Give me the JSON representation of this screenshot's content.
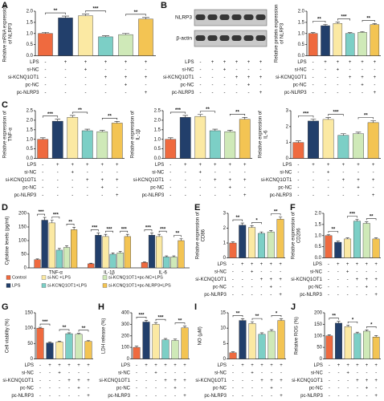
{
  "conditions": [
    {
      "name": "LPS",
      "signs": [
        "-",
        "+",
        "+",
        "+",
        "+",
        "+"
      ]
    },
    {
      "name": "si-NC",
      "signs": [
        "-",
        "-",
        "+",
        "-",
        "-",
        "-"
      ]
    },
    {
      "name": "si-KCNQ1OT1",
      "signs": [
        "-",
        "-",
        "-",
        "+",
        "+",
        "+"
      ]
    },
    {
      "name": "pc-NC",
      "signs": [
        "-",
        "-",
        "-",
        "-",
        "+",
        "-"
      ]
    },
    {
      "name": "pc-NLRP3",
      "signs": [
        "-",
        "-",
        "-",
        "-",
        "-",
        "+"
      ]
    }
  ],
  "blot": {
    "panel": "B",
    "bands": [
      "NLRP3",
      "β-actin"
    ]
  },
  "chart_data": [
    {
      "type": "bar",
      "panel": "A",
      "ylabel": [
        "Relative mRNA expression",
        "of NLRP3"
      ],
      "colors": [
        "#ef6a3f",
        "#223f6b",
        "#fbe9a3",
        "#7ccfc6",
        "#cfe9b8",
        "#f3c453"
      ],
      "values": [
        1.0,
        1.7,
        1.8,
        0.85,
        0.95,
        1.65
      ],
      "errors": [
        0.05,
        0.08,
        0.07,
        0.05,
        0.05,
        0.07
      ],
      "ylim": [
        0,
        2
      ],
      "yticks": [
        {
          "value": 0,
          "label": "0.0"
        },
        0.5,
        {
          "value": 1,
          "label": "1.0"
        },
        1.5,
        {
          "value": 2,
          "label": "2.0"
        }
      ],
      "comparisons": [
        {
          "pair": [
            0,
            1
          ],
          "label": "**"
        },
        {
          "pair": [
            2,
            3
          ],
          "label": "***"
        },
        {
          "pair": [
            4,
            5
          ],
          "label": "**"
        }
      ]
    },
    {
      "type": "bar",
      "ylabel": [
        "Relative protein expression",
        "of NLRP3"
      ],
      "colors": [
        "#ef6a3f",
        "#223f6b",
        "#fbe9a3",
        "#7ccfc6",
        "#cfe9b8",
        "#f3c453"
      ],
      "values": [
        1.0,
        1.35,
        1.45,
        1.0,
        1.05,
        1.4
      ],
      "errors": [
        0.04,
        0.06,
        0.06,
        0.04,
        0.04,
        0.05
      ],
      "ylim": [
        0,
        2
      ],
      "yticks": [
        {
          "value": 0,
          "label": "0.0"
        },
        0.5,
        {
          "value": 1,
          "label": "1.0"
        },
        1.5,
        {
          "value": 2,
          "label": "2.0"
        }
      ],
      "comparisons": [
        {
          "pair": [
            0,
            1
          ],
          "label": "**"
        },
        {
          "pair": [
            2,
            3
          ],
          "label": "***"
        },
        {
          "pair": [
            4,
            5
          ],
          "label": "**"
        }
      ]
    },
    {
      "type": "bar",
      "panel": "C",
      "ylabel": [
        "Relative expression of",
        "TNF-α"
      ],
      "colors": [
        "#ef6a3f",
        "#223f6b",
        "#fbe9a3",
        "#7ccfc6",
        "#cfe9b8",
        "#f3c453"
      ],
      "values": [
        1.0,
        1.95,
        2.15,
        1.45,
        1.4,
        1.85
      ],
      "errors": [
        0.08,
        0.1,
        0.1,
        0.08,
        0.07,
        0.09
      ],
      "ylim": [
        0,
        2.5
      ],
      "yticks": [
        {
          "value": 0,
          "label": "0.0"
        },
        0.5,
        {
          "value": 1,
          "label": "1.0"
        },
        1.5,
        {
          "value": 2,
          "label": "2.0"
        },
        2.5
      ],
      "comparisons": [
        {
          "pair": [
            0,
            1
          ],
          "label": "***"
        },
        {
          "pair": [
            2,
            3
          ],
          "label": "**"
        },
        {
          "pair": [
            4,
            5
          ],
          "label": "**"
        }
      ]
    },
    {
      "type": "bar",
      "ylabel": [
        "Relative expression of",
        "IL-1β"
      ],
      "colors": [
        "#ef6a3f",
        "#223f6b",
        "#fbe9a3",
        "#7ccfc6",
        "#cfe9b8",
        "#f3c453"
      ],
      "values": [
        1.0,
        2.15,
        2.2,
        1.45,
        1.4,
        2.05
      ],
      "errors": [
        0.08,
        0.1,
        0.1,
        0.08,
        0.08,
        0.1
      ],
      "ylim": [
        0,
        2.5
      ],
      "yticks": [
        {
          "value": 0,
          "label": "0.0"
        },
        0.5,
        {
          "value": 1,
          "label": "1.0"
        },
        1.5,
        {
          "value": 2,
          "label": "2.0"
        },
        2.5
      ],
      "comparisons": [
        {
          "pair": [
            0,
            1
          ],
          "label": "***"
        },
        {
          "pair": [
            2,
            3
          ],
          "label": "**"
        },
        {
          "pair": [
            4,
            5
          ],
          "label": "**"
        }
      ]
    },
    {
      "type": "bar",
      "ylabel": [
        "Relative expression of",
        "IL-6"
      ],
      "colors": [
        "#ef6a3f",
        "#223f6b",
        "#fbe9a3",
        "#7ccfc6",
        "#cfe9b8",
        "#f3c453"
      ],
      "values": [
        1.0,
        2.35,
        2.45,
        1.45,
        1.55,
        2.25
      ],
      "errors": [
        0.1,
        0.12,
        0.12,
        0.1,
        0.1,
        0.12
      ],
      "ylim": [
        0,
        3
      ],
      "yticks": [
        0,
        1,
        2,
        3
      ],
      "comparisons": [
        {
          "pair": [
            0,
            1
          ],
          "label": "***"
        },
        {
          "pair": [
            2,
            3
          ],
          "label": "***"
        },
        {
          "pair": [
            4,
            5
          ],
          "label": "**"
        }
      ]
    },
    {
      "type": "grouped_bar",
      "panel": "D",
      "ylabel": [
        "Cytokine levels (pg/ml)"
      ],
      "categories": [
        "TNF-α",
        "IL-1β",
        "IL-6"
      ],
      "ylim": [
        0,
        200
      ],
      "yticks": [
        0,
        50,
        100,
        150,
        200
      ],
      "series": [
        {
          "name": "Control",
          "color": "#ef6a3f",
          "values": [
            30,
            15,
            20
          ],
          "errors": [
            3,
            2,
            2
          ]
        },
        {
          "name": "LPS",
          "color": "#223f6b",
          "values": [
            175,
            120,
            120
          ],
          "errors": [
            10,
            8,
            8
          ]
        },
        {
          "name": "si-NC +LPS",
          "color": "#fbe9a3",
          "values": [
            165,
            115,
            115
          ],
          "errors": [
            10,
            8,
            8
          ]
        },
        {
          "name": "si-KCNQ1OT1+LPS",
          "color": "#7ccfc6",
          "values": [
            65,
            50,
            40
          ],
          "errors": [
            6,
            5,
            4
          ]
        },
        {
          "name": "si-KCNQ1OT1+pc-NC+LPS",
          "color": "#cfe9b8",
          "values": [
            75,
            55,
            40
          ],
          "errors": [
            6,
            5,
            4
          ]
        },
        {
          "name": "si-KCNQ1OT1+pc-NLRP3+LPS",
          "color": "#f3c453",
          "values": [
            140,
            115,
            100
          ],
          "errors": [
            9,
            8,
            7
          ]
        }
      ],
      "comparisons": [
        {
          "category": 0,
          "pair": [
            0,
            1
          ],
          "label": "***"
        },
        {
          "category": 0,
          "pair": [
            2,
            3
          ],
          "label": "***"
        },
        {
          "category": 0,
          "pair": [
            4,
            5
          ],
          "label": "**"
        },
        {
          "category": 1,
          "pair": [
            0,
            1
          ],
          "label": "***"
        },
        {
          "category": 1,
          "pair": [
            2,
            3
          ],
          "label": "***"
        },
        {
          "category": 1,
          "pair": [
            4,
            5
          ],
          "label": "***"
        },
        {
          "category": 2,
          "pair": [
            0,
            1
          ],
          "label": "***"
        },
        {
          "category": 2,
          "pair": [
            2,
            3
          ],
          "label": "***"
        },
        {
          "category": 2,
          "pair": [
            4,
            5
          ],
          "label": "**"
        }
      ]
    },
    {
      "type": "bar",
      "panel": "E",
      "ylabel": [
        "Relative expression of",
        "CD86"
      ],
      "colors": [
        "#ef6a3f",
        "#223f6b",
        "#fbe9a3",
        "#7ccfc6",
        "#cfe9b8",
        "#f3c453"
      ],
      "values": [
        1.0,
        2.2,
        2.05,
        1.65,
        1.75,
        2.6
      ],
      "errors": [
        0.08,
        0.15,
        0.12,
        0.1,
        0.1,
        0.15
      ],
      "ylim": [
        0,
        3
      ],
      "yticks": [
        0,
        1,
        2,
        3
      ],
      "comparisons": [
        {
          "pair": [
            0,
            1
          ],
          "label": "**"
        },
        {
          "pair": [
            2,
            3
          ],
          "label": "*"
        },
        {
          "pair": [
            4,
            5
          ],
          "label": "**"
        }
      ]
    },
    {
      "type": "bar",
      "panel": "F",
      "ylabel": [
        "Relative expression of",
        "CD206"
      ],
      "colors": [
        "#ef6a3f",
        "#223f6b",
        "#fbe9a3",
        "#7ccfc6",
        "#cfe9b8",
        "#f3c453"
      ],
      "values": [
        1.0,
        0.7,
        0.85,
        1.65,
        1.55,
        0.85
      ],
      "errors": [
        0.05,
        0.05,
        0.05,
        0.08,
        0.07,
        0.05
      ],
      "ylim": [
        0,
        2
      ],
      "yticks": [
        {
          "value": 0,
          "label": "0.0"
        },
        0.5,
        {
          "value": 1,
          "label": "1.0"
        },
        1.5,
        {
          "value": 2,
          "label": "2.0"
        }
      ],
      "comparisons": [
        {
          "pair": [
            0,
            1
          ],
          "label": "**"
        },
        {
          "pair": [
            2,
            3
          ],
          "label": "***"
        },
        {
          "pair": [
            4,
            5
          ],
          "label": "**"
        }
      ]
    },
    {
      "type": "bar",
      "panel": "G",
      "ylabel": [
        "Cell viability (%)"
      ],
      "colors": [
        "#ef6a3f",
        "#223f6b",
        "#fbe9a3",
        "#7ccfc6",
        "#cfe9b8",
        "#f3c453"
      ],
      "values": [
        100,
        52,
        55,
        82,
        80,
        57
      ],
      "errors": [
        3,
        3,
        3,
        3,
        3,
        3
      ],
      "ylim": [
        0,
        150
      ],
      "yticks": [
        0,
        50,
        100,
        150
      ],
      "comparisons": [
        {
          "pair": [
            0,
            1
          ],
          "label": "***"
        },
        {
          "pair": [
            2,
            3
          ],
          "label": "**"
        },
        {
          "pair": [
            4,
            5
          ],
          "label": "**"
        }
      ]
    },
    {
      "type": "bar",
      "panel": "H",
      "ylabel": [
        "LDH release (%)"
      ],
      "colors": [
        "#ef6a3f",
        "#223f6b",
        "#fbe9a3",
        "#7ccfc6",
        "#cfe9b8",
        "#f3c453"
      ],
      "values": [
        100,
        320,
        300,
        165,
        160,
        270
      ],
      "errors": [
        10,
        15,
        15,
        12,
        12,
        15
      ],
      "ylim": [
        0,
        400
      ],
      "yticks": [
        0,
        100,
        200,
        300,
        400
      ],
      "comparisons": [
        {
          "pair": [
            0,
            1
          ],
          "label": "***"
        },
        {
          "pair": [
            2,
            3
          ],
          "label": "***"
        },
        {
          "pair": [
            4,
            5
          ],
          "label": "**"
        }
      ]
    },
    {
      "type": "bar",
      "panel": "I",
      "ylabel": [
        "NO (μM)"
      ],
      "colors": [
        "#ef6a3f",
        "#223f6b",
        "#fbe9a3",
        "#7ccfc6",
        "#cfe9b8",
        "#f3c453"
      ],
      "values": [
        2,
        12.5,
        11.5,
        8,
        9,
        12.5
      ],
      "errors": [
        0.3,
        0.6,
        0.6,
        0.5,
        0.5,
        0.6
      ],
      "ylim": [
        0,
        15
      ],
      "yticks": [
        0,
        5,
        10,
        15
      ],
      "comparisons": [
        {
          "pair": [
            0,
            1
          ],
          "label": "**"
        },
        {
          "pair": [
            2,
            3
          ],
          "label": "**"
        },
        {
          "pair": [
            4,
            5
          ],
          "label": "*"
        }
      ]
    },
    {
      "type": "bar",
      "panel": "J",
      "ylabel": [
        "Relative ROS (%)"
      ],
      "colors": [
        "#ef6a3f",
        "#223f6b",
        "#fbe9a3",
        "#7ccfc6",
        "#cfe9b8",
        "#f3c453"
      ],
      "values": [
        100,
        155,
        140,
        110,
        120,
        95
      ],
      "errors": [
        5,
        8,
        7,
        6,
        6,
        6
      ],
      "ylim": [
        0,
        200
      ],
      "yticks": [
        0,
        50,
        100,
        150,
        200
      ],
      "comparisons": [
        {
          "pair": [
            0,
            1
          ],
          "label": "**"
        },
        {
          "pair": [
            2,
            3
          ],
          "label": "*"
        },
        {
          "pair": [
            4,
            5
          ],
          "label": "*"
        }
      ]
    }
  ]
}
